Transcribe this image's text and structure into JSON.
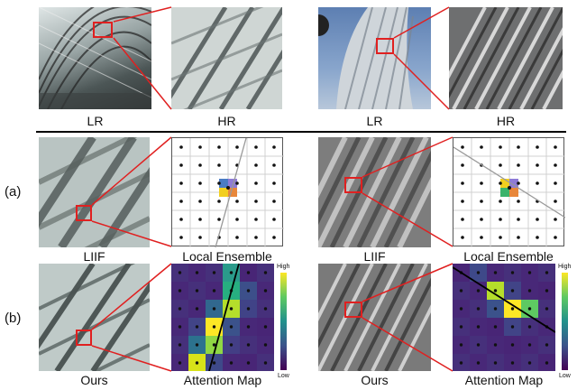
{
  "top_row": {
    "left_lr": "LR",
    "left_hr": "HR",
    "right_lr": "LR",
    "right_hr": "HR"
  },
  "row_a": {
    "row_label": "(a)",
    "left_method": "LIIF",
    "left_panel": "Local Ensemble",
    "right_method": "LIIF",
    "right_panel": "Local Ensemble"
  },
  "row_b": {
    "row_label": "(b)",
    "left_method": "Ours",
    "left_panel": "Attention Map",
    "right_method": "Ours",
    "right_panel": "Attention Map"
  },
  "colorbar": {
    "high": "High",
    "low": "Low"
  },
  "colors": {
    "zoom_box": "#e02020",
    "grid_line": "#cfcfcf",
    "direction_line": "#9a9a9a",
    "viridis_low": "#440154",
    "viridis_high": "#fde725"
  }
}
